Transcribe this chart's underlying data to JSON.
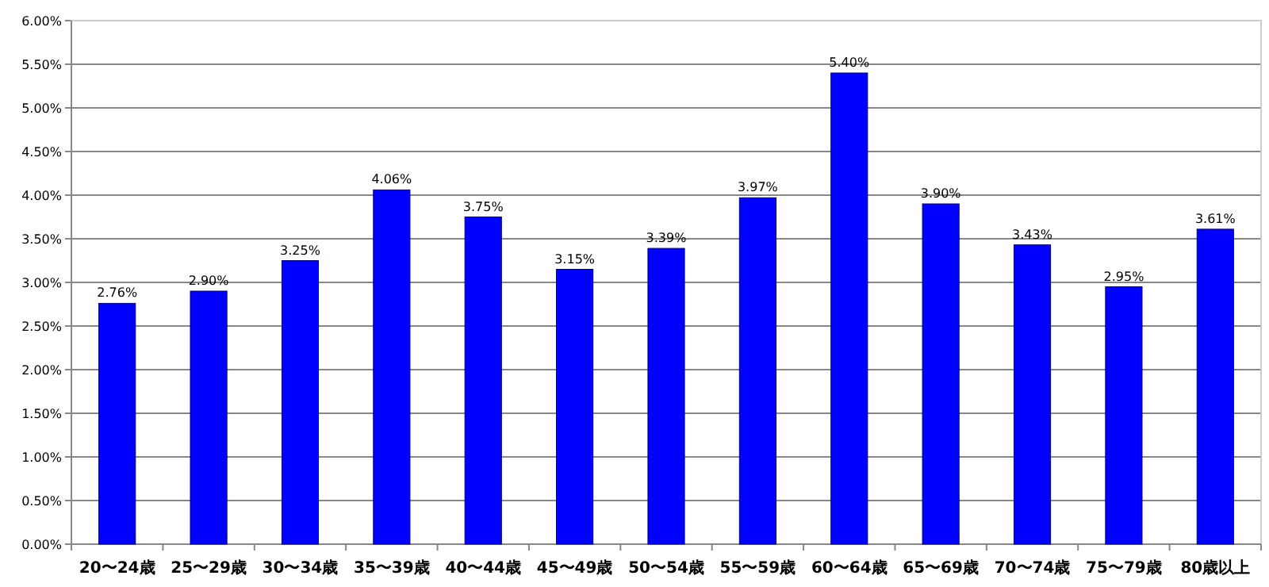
{
  "chart_data": {
    "type": "bar",
    "categories": [
      "20〜24歳",
      "25〜29歳",
      "30〜34歳",
      "35〜39歳",
      "40〜44歳",
      "45〜49歳",
      "50〜54歳",
      "55〜59歳",
      "60〜64歳",
      "65〜69歳",
      "70〜74歳",
      "75〜79歳",
      "80歳以上"
    ],
    "values": [
      2.76,
      2.9,
      3.25,
      4.06,
      3.75,
      3.15,
      3.39,
      3.97,
      5.4,
      3.9,
      3.43,
      2.95,
      3.61
    ],
    "value_labels": [
      "2.76%",
      "2.90%",
      "3.25%",
      "4.06%",
      "3.75%",
      "3.15%",
      "3.39%",
      "3.97%",
      "5.40%",
      "3.90%",
      "3.43%",
      "2.95%",
      "3.61%"
    ],
    "color": "#0000ff",
    "ylim": [
      0,
      6
    ],
    "yticks": [
      {
        "value": 0,
        "label": "0.00%"
      },
      {
        "value": 0.5,
        "label": "0.50%"
      },
      {
        "value": 1,
        "label": "1.00%"
      },
      {
        "value": 1.5,
        "label": "1.50%"
      },
      {
        "value": 2,
        "label": "2.00%"
      },
      {
        "value": 2.5,
        "label": "2.50%"
      },
      {
        "value": 3,
        "label": "3.00%"
      },
      {
        "value": 3.5,
        "label": "3.50%"
      },
      {
        "value": 4,
        "label": "4.00%"
      },
      {
        "value": 4.5,
        "label": "4.50%"
      },
      {
        "value": 5,
        "label": "5.00%"
      },
      {
        "value": 5.5,
        "label": "5.50%"
      },
      {
        "value": 6,
        "label": "6.00%"
      }
    ],
    "grid": "y"
  }
}
